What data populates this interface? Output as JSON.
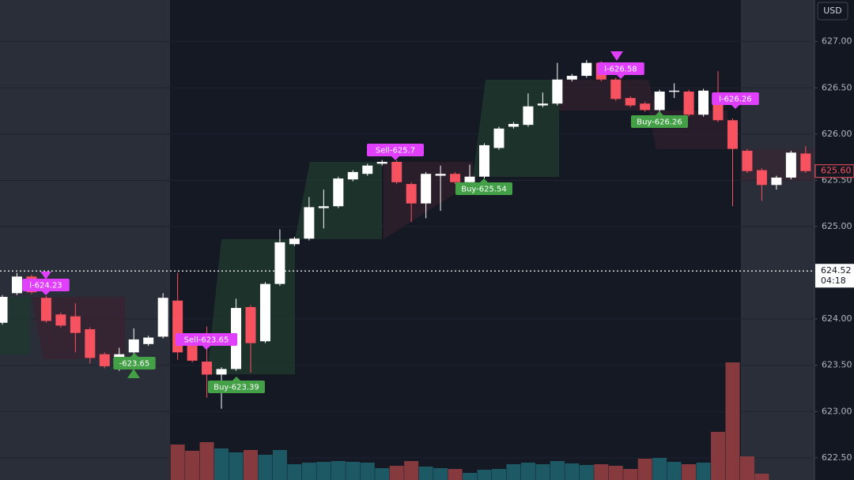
{
  "chart_data": {
    "type": "candlestick",
    "currency": "USD",
    "open": [
      623.96,
      624.28,
      624.46,
      624.23,
      624.05,
      624.03,
      623.89,
      623.62,
      623.49,
      623.64,
      623.73,
      623.81,
      624.2,
      623.74,
      623.54,
      623.4,
      623.46,
      624.13,
      623.76,
      624.38,
      624.81,
      624.87,
      625.2,
      625.22,
      625.51,
      625.57,
      625.68,
      625.7,
      625.46,
      625.25,
      625.55,
      625.57,
      625.48,
      625.54,
      625.85,
      626.08,
      626.1,
      626.31,
      626.33,
      626.59,
      626.63,
      626.77,
      626.59,
      626.39,
      626.33,
      626.26,
      626.46,
      626.46,
      626.21,
      626.45,
      626.15,
      625.82,
      625.61,
      625.45,
      625.53,
      625.79
    ],
    "high": [
      624.26,
      624.5,
      624.48,
      624.25,
      624.07,
      624.17,
      623.91,
      623.64,
      623.69,
      623.9,
      623.82,
      624.28,
      624.5,
      623.76,
      623.92,
      623.48,
      624.22,
      624.15,
      624.4,
      624.97,
      624.89,
      625.32,
      625.4,
      625.54,
      625.61,
      625.68,
      625.72,
      625.72,
      625.48,
      625.59,
      625.66,
      625.59,
      625.67,
      625.9,
      626.08,
      626.13,
      626.44,
      626.45,
      626.77,
      626.65,
      626.8,
      626.79,
      626.61,
      626.41,
      626.35,
      626.48,
      626.55,
      626.48,
      626.49,
      626.68,
      626.17,
      625.84,
      625.63,
      625.55,
      625.82,
      625.87
    ],
    "low": [
      623.94,
      624.26,
      624.27,
      623.96,
      623.91,
      623.64,
      623.52,
      623.47,
      623.44,
      623.62,
      623.71,
      623.79,
      623.56,
      623.53,
      623.15,
      623.03,
      623.44,
      623.42,
      623.74,
      624.36,
      624.79,
      624.85,
      624.98,
      625.2,
      625.49,
      625.55,
      625.66,
      625.46,
      625.05,
      625.09,
      625.17,
      625.46,
      625.46,
      625.52,
      625.83,
      626.06,
      626.08,
      626.29,
      626.31,
      626.57,
      626.61,
      626.57,
      626.36,
      626.29,
      626.24,
      626.24,
      626.39,
      626.19,
      626.19,
      626.13,
      625.22,
      625.58,
      625.28,
      625.4,
      625.51,
      625.58
    ],
    "close": [
      624.24,
      624.46,
      624.29,
      623.98,
      623.93,
      623.85,
      623.58,
      623.49,
      623.62,
      623.78,
      623.8,
      624.23,
      623.64,
      623.55,
      623.4,
      623.46,
      624.12,
      623.74,
      624.38,
      624.83,
      624.87,
      625.21,
      625.22,
      625.52,
      625.59,
      625.66,
      625.7,
      625.48,
      625.25,
      625.57,
      625.57,
      625.48,
      625.54,
      625.88,
      626.06,
      626.11,
      626.3,
      626.33,
      626.59,
      626.63,
      626.77,
      626.59,
      626.38,
      626.31,
      626.26,
      626.46,
      626.47,
      626.21,
      626.47,
      626.15,
      625.84,
      625.6,
      625.45,
      625.53,
      625.8,
      625.6
    ],
    "volume": [
      null,
      null,
      null,
      null,
      null,
      null,
      null,
      null,
      null,
      null,
      null,
      null,
      45,
      37,
      48,
      40,
      35,
      38,
      32,
      38,
      20,
      22,
      23,
      24,
      23,
      22,
      15,
      18,
      24,
      17,
      15,
      14,
      9,
      13,
      14,
      20,
      22,
      20,
      24,
      21,
      19,
      20,
      18,
      14,
      27,
      28,
      23,
      20,
      22,
      61,
      149,
      30,
      8,
      null,
      null,
      null
    ],
    "up_color": "#ffffff",
    "down_color": "#f7525f",
    "ylim": [
      622.26,
      627.45
    ],
    "yticks": [
      {
        "value": 622.5,
        "label": "622.50"
      },
      {
        "value": 623,
        "label": "623.00"
      },
      {
        "value": 623.5,
        "label": "623.50"
      },
      {
        "value": 624,
        "label": "624.00"
      },
      {
        "value": 625,
        "label": "625.00"
      },
      {
        "value": 625.5,
        "label": "625.50"
      },
      {
        "value": 626,
        "label": "626.00"
      },
      {
        "value": 626.5,
        "label": "626.50"
      },
      {
        "value": 627,
        "label": "627.00"
      }
    ],
    "grid": true,
    "crosshair": {
      "value": 624.52,
      "label": "624.52",
      "time": "04:18"
    },
    "last_price": {
      "value": 625.6,
      "label": "625.60"
    },
    "annotations": [
      {
        "text": "l-624.23",
        "kind": "sell"
      },
      {
        "text": "-623.65",
        "kind": "buy"
      },
      {
        "text": "Sell-623.65",
        "kind": "sell"
      },
      {
        "text": "Buy-623.39",
        "kind": "buy"
      },
      {
        "text": "Sell-625.7",
        "kind": "sell"
      },
      {
        "text": "Buy-625.54",
        "kind": "buy"
      },
      {
        "text": "l-626.58",
        "kind": "sell"
      },
      {
        "text": "Buy-626.26",
        "kind": "buy"
      },
      {
        "text": "l-626.26",
        "kind": "sell"
      }
    ]
  }
}
